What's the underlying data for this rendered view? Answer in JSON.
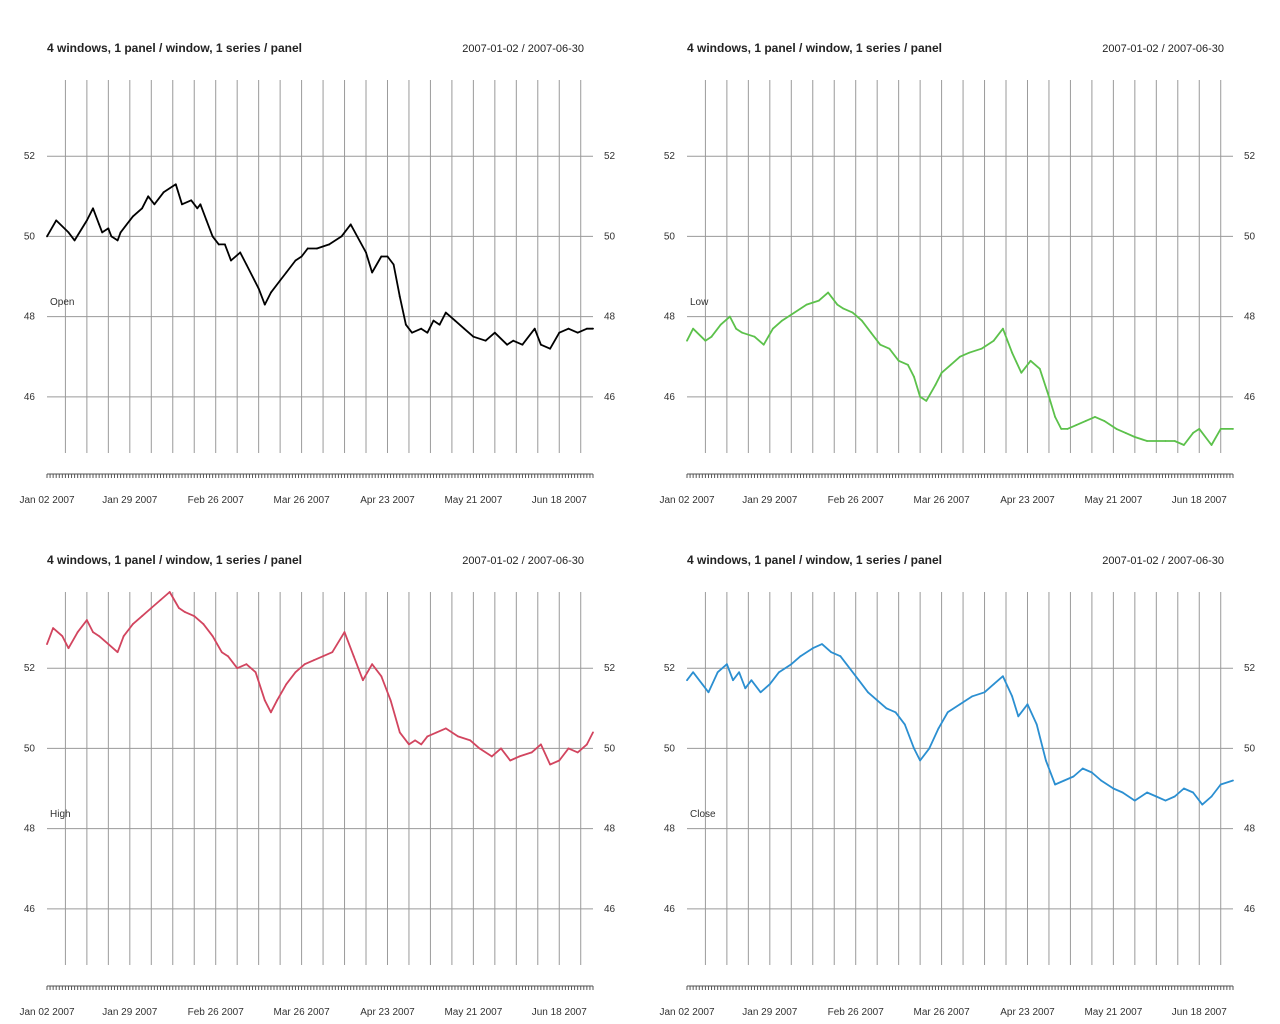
{
  "chart_data": [
    {
      "type": "line",
      "title": "4 windows, 1 panel / window, 1 series / panel",
      "date_range": "2007-01-02 / 2007-06-30",
      "series_label": "Open",
      "color": "#000000",
      "y_ticks": [
        "46",
        "48",
        "50",
        "52"
      ],
      "x_ticks": [
        "Jan 02 2007",
        "Jan 29 2007",
        "Feb 26 2007",
        "Mar 26 2007",
        "Apr 23 2007",
        "May 21 2007",
        "Jun 18 2007"
      ],
      "x_tick_dates": [
        "2007-01-02",
        "2007-01-29",
        "2007-02-26",
        "2007-03-26",
        "2007-04-23",
        "2007-05-21",
        "2007-06-18"
      ],
      "xlim": [
        "2007-01-02",
        "2007-06-29"
      ],
      "ylim": [
        44.6,
        53.9
      ],
      "grid": true,
      "series": [
        {
          "name": "Open",
          "x": [
            "2007-01-02",
            "2007-01-05",
            "2007-01-09",
            "2007-01-11",
            "2007-01-15",
            "2007-01-17",
            "2007-01-19",
            "2007-01-20",
            "2007-01-22",
            "2007-01-23",
            "2007-01-25",
            "2007-01-26",
            "2007-01-29",
            "2007-01-30",
            "2007-02-02",
            "2007-02-04",
            "2007-02-06",
            "2007-02-09",
            "2007-02-13",
            "2007-02-15",
            "2007-02-18",
            "2007-02-20",
            "2007-02-21",
            "2007-02-23",
            "2007-02-25",
            "2007-02-27",
            "2007-03-01",
            "2007-03-03",
            "2007-03-06",
            "2007-03-08",
            "2007-03-12",
            "2007-03-14",
            "2007-03-16",
            "2007-03-19",
            "2007-03-21",
            "2007-03-24",
            "2007-03-26",
            "2007-03-28",
            "2007-03-31",
            "2007-04-04",
            "2007-04-08",
            "2007-04-11",
            "2007-04-16",
            "2007-04-18",
            "2007-04-21",
            "2007-04-23",
            "2007-04-25",
            "2007-04-27",
            "2007-04-29",
            "2007-05-01",
            "2007-05-04",
            "2007-05-06",
            "2007-05-08",
            "2007-05-10",
            "2007-05-12",
            "2007-05-15",
            "2007-05-18",
            "2007-05-21",
            "2007-05-25",
            "2007-05-28",
            "2007-06-01",
            "2007-06-03",
            "2007-06-06",
            "2007-06-10",
            "2007-06-12",
            "2007-06-15",
            "2007-06-18",
            "2007-06-21",
            "2007-06-24",
            "2007-06-27",
            "2007-06-29"
          ],
          "values": [
            50.0,
            50.4,
            50.1,
            49.9,
            50.4,
            50.7,
            50.3,
            50.1,
            50.2,
            50.0,
            49.9,
            50.1,
            50.4,
            50.5,
            50.7,
            51.0,
            50.8,
            51.1,
            51.3,
            50.8,
            50.9,
            50.7,
            50.8,
            50.4,
            50.0,
            49.8,
            49.8,
            49.4,
            49.6,
            49.3,
            48.7,
            48.3,
            48.6,
            48.9,
            49.1,
            49.4,
            49.5,
            49.7,
            49.7,
            49.8,
            50.0,
            50.3,
            49.6,
            49.1,
            49.5,
            49.5,
            49.3,
            48.5,
            47.8,
            47.6,
            47.7,
            47.6,
            47.9,
            47.8,
            48.1,
            47.9,
            47.7,
            47.5,
            47.4,
            47.6,
            47.3,
            47.4,
            47.3,
            47.7,
            47.3,
            47.2,
            47.6,
            47.7,
            47.6,
            47.7,
            47.7
          ]
        }
      ]
    },
    {
      "type": "line",
      "title": "4 windows, 1 panel / window, 1 series / panel",
      "date_range": "2007-01-02 / 2007-06-30",
      "series_label": "Low",
      "color": "#5cc14b",
      "y_ticks": [
        "46",
        "48",
        "50",
        "52"
      ],
      "x_ticks": [
        "Jan 02 2007",
        "Jan 29 2007",
        "Feb 26 2007",
        "Mar 26 2007",
        "Apr 23 2007",
        "May 21 2007",
        "Jun 18 2007"
      ],
      "x_tick_dates": [
        "2007-01-02",
        "2007-01-29",
        "2007-02-26",
        "2007-03-26",
        "2007-04-23",
        "2007-05-21",
        "2007-06-18"
      ],
      "xlim": [
        "2007-01-02",
        "2007-06-29"
      ],
      "ylim": [
        44.6,
        53.9
      ],
      "grid": true,
      "series": [
        {
          "name": "Low",
          "x": [
            "2007-01-02",
            "2007-01-04",
            "2007-01-08",
            "2007-01-10",
            "2007-01-13",
            "2007-01-16",
            "2007-01-18",
            "2007-01-20",
            "2007-01-24",
            "2007-01-27",
            "2007-01-30",
            "2007-02-02",
            "2007-02-06",
            "2007-02-10",
            "2007-02-14",
            "2007-02-17",
            "2007-02-20",
            "2007-02-22",
            "2007-02-25",
            "2007-02-28",
            "2007-03-03",
            "2007-03-06",
            "2007-03-09",
            "2007-03-12",
            "2007-03-15",
            "2007-03-17",
            "2007-03-19",
            "2007-03-21",
            "2007-03-24",
            "2007-03-26",
            "2007-03-29",
            "2007-04-01",
            "2007-04-04",
            "2007-04-08",
            "2007-04-12",
            "2007-04-15",
            "2007-04-18",
            "2007-04-21",
            "2007-04-24",
            "2007-04-27",
            "2007-04-30",
            "2007-05-02",
            "2007-05-04",
            "2007-05-06",
            "2007-05-09",
            "2007-05-12",
            "2007-05-15",
            "2007-05-18",
            "2007-05-22",
            "2007-05-25",
            "2007-05-28",
            "2007-06-01",
            "2007-06-04",
            "2007-06-07",
            "2007-06-10",
            "2007-06-13",
            "2007-06-16",
            "2007-06-18",
            "2007-06-22",
            "2007-06-25",
            "2007-06-29"
          ],
          "values": [
            47.4,
            47.7,
            47.4,
            47.5,
            47.8,
            48.0,
            47.7,
            47.6,
            47.5,
            47.3,
            47.7,
            47.9,
            48.1,
            48.3,
            48.4,
            48.6,
            48.3,
            48.2,
            48.1,
            47.9,
            47.6,
            47.3,
            47.2,
            46.9,
            46.8,
            46.5,
            46.0,
            45.9,
            46.3,
            46.6,
            46.8,
            47.0,
            47.1,
            47.2,
            47.4,
            47.7,
            47.1,
            46.6,
            46.9,
            46.7,
            46.0,
            45.5,
            45.2,
            45.2,
            45.3,
            45.4,
            45.5,
            45.4,
            45.2,
            45.1,
            45.0,
            44.9,
            44.9,
            44.9,
            44.9,
            44.8,
            45.1,
            45.2,
            44.8,
            45.2,
            45.2
          ]
        }
      ]
    },
    {
      "type": "line",
      "title": "4 windows, 1 panel / window, 1 series / panel",
      "date_range": "2007-01-02 / 2007-06-30",
      "series_label": "High",
      "color": "#d2455f",
      "y_ticks": [
        "46",
        "48",
        "50",
        "52"
      ],
      "x_ticks": [
        "Jan 02 2007",
        "Jan 29 2007",
        "Feb 26 2007",
        "Mar 26 2007",
        "Apr 23 2007",
        "May 21 2007",
        "Jun 18 2007"
      ],
      "x_tick_dates": [
        "2007-01-02",
        "2007-01-29",
        "2007-02-26",
        "2007-03-26",
        "2007-04-23",
        "2007-05-21",
        "2007-06-18"
      ],
      "xlim": [
        "2007-01-02",
        "2007-06-29"
      ],
      "ylim": [
        44.6,
        53.9
      ],
      "grid": true,
      "series": [
        {
          "name": "High",
          "x": [
            "2007-01-02",
            "2007-01-04",
            "2007-01-07",
            "2007-01-09",
            "2007-01-12",
            "2007-01-15",
            "2007-01-17",
            "2007-01-19",
            "2007-01-22",
            "2007-01-25",
            "2007-01-27",
            "2007-01-30",
            "2007-02-02",
            "2007-02-05",
            "2007-02-08",
            "2007-02-11",
            "2007-02-14",
            "2007-02-16",
            "2007-02-19",
            "2007-02-22",
            "2007-02-25",
            "2007-02-28",
            "2007-03-02",
            "2007-03-05",
            "2007-03-08",
            "2007-03-11",
            "2007-03-14",
            "2007-03-16",
            "2007-03-18",
            "2007-03-21",
            "2007-03-24",
            "2007-03-27",
            "2007-03-30",
            "2007-04-02",
            "2007-04-05",
            "2007-04-09",
            "2007-04-12",
            "2007-04-15",
            "2007-04-18",
            "2007-04-21",
            "2007-04-24",
            "2007-04-27",
            "2007-04-30",
            "2007-05-02",
            "2007-05-04",
            "2007-05-06",
            "2007-05-09",
            "2007-05-12",
            "2007-05-16",
            "2007-05-20",
            "2007-05-23",
            "2007-05-27",
            "2007-05-30",
            "2007-06-02",
            "2007-06-05",
            "2007-06-09",
            "2007-06-12",
            "2007-06-15",
            "2007-06-18",
            "2007-06-21",
            "2007-06-24",
            "2007-06-27",
            "2007-06-29"
          ],
          "values": [
            52.6,
            53.0,
            52.8,
            52.5,
            52.9,
            53.2,
            52.9,
            52.8,
            52.6,
            52.4,
            52.8,
            53.1,
            53.3,
            53.5,
            53.7,
            53.9,
            53.5,
            53.4,
            53.3,
            53.1,
            52.8,
            52.4,
            52.3,
            52.0,
            52.1,
            51.9,
            51.2,
            50.9,
            51.2,
            51.6,
            51.9,
            52.1,
            52.2,
            52.3,
            52.4,
            52.9,
            52.3,
            51.7,
            52.1,
            51.8,
            51.2,
            50.4,
            50.1,
            50.2,
            50.1,
            50.3,
            50.4,
            50.5,
            50.3,
            50.2,
            50.0,
            49.8,
            50.0,
            49.7,
            49.8,
            49.9,
            50.1,
            49.6,
            49.7,
            50.0,
            49.9,
            50.1,
            50.4
          ]
        }
      ]
    },
    {
      "type": "line",
      "title": "4 windows, 1 panel / window, 1 series / panel",
      "date_range": "2007-01-02 / 2007-06-30",
      "series_label": "Close",
      "color": "#2b8fd1",
      "y_ticks": [
        "46",
        "48",
        "50",
        "52"
      ],
      "x_ticks": [
        "Jan 02 2007",
        "Jan 29 2007",
        "Feb 26 2007",
        "Mar 26 2007",
        "Apr 23 2007",
        "May 21 2007",
        "Jun 18 2007"
      ],
      "x_tick_dates": [
        "2007-01-02",
        "2007-01-29",
        "2007-02-26",
        "2007-03-26",
        "2007-04-23",
        "2007-05-21",
        "2007-06-18"
      ],
      "xlim": [
        "2007-01-02",
        "2007-06-29"
      ],
      "ylim": [
        44.6,
        53.9
      ],
      "grid": true,
      "series": [
        {
          "name": "Close",
          "x": [
            "2007-01-02",
            "2007-01-04",
            "2007-01-07",
            "2007-01-09",
            "2007-01-12",
            "2007-01-15",
            "2007-01-17",
            "2007-01-19",
            "2007-01-21",
            "2007-01-23",
            "2007-01-26",
            "2007-01-29",
            "2007-02-01",
            "2007-02-05",
            "2007-02-08",
            "2007-02-12",
            "2007-02-15",
            "2007-02-18",
            "2007-02-21",
            "2007-02-24",
            "2007-02-27",
            "2007-03-02",
            "2007-03-05",
            "2007-03-08",
            "2007-03-11",
            "2007-03-14",
            "2007-03-17",
            "2007-03-19",
            "2007-03-22",
            "2007-03-25",
            "2007-03-28",
            "2007-04-01",
            "2007-04-05",
            "2007-04-09",
            "2007-04-12",
            "2007-04-15",
            "2007-04-18",
            "2007-04-20",
            "2007-04-23",
            "2007-04-26",
            "2007-04-29",
            "2007-05-02",
            "2007-05-05",
            "2007-05-08",
            "2007-05-11",
            "2007-05-14",
            "2007-05-17",
            "2007-05-21",
            "2007-05-24",
            "2007-05-28",
            "2007-06-01",
            "2007-06-04",
            "2007-06-07",
            "2007-06-10",
            "2007-06-13",
            "2007-06-16",
            "2007-06-19",
            "2007-06-22",
            "2007-06-25",
            "2007-06-29"
          ],
          "values": [
            51.7,
            51.9,
            51.6,
            51.4,
            51.9,
            52.1,
            51.7,
            51.9,
            51.5,
            51.7,
            51.4,
            51.6,
            51.9,
            52.1,
            52.3,
            52.5,
            52.6,
            52.4,
            52.3,
            52.0,
            51.7,
            51.4,
            51.2,
            51.0,
            50.9,
            50.6,
            50.0,
            49.7,
            50.0,
            50.5,
            50.9,
            51.1,
            51.3,
            51.4,
            51.6,
            51.8,
            51.3,
            50.8,
            51.1,
            50.6,
            49.7,
            49.1,
            49.2,
            49.3,
            49.5,
            49.4,
            49.2,
            49.0,
            48.9,
            48.7,
            48.9,
            48.8,
            48.7,
            48.8,
            49.0,
            48.9,
            48.6,
            48.8,
            49.1,
            49.2
          ]
        }
      ]
    }
  ]
}
